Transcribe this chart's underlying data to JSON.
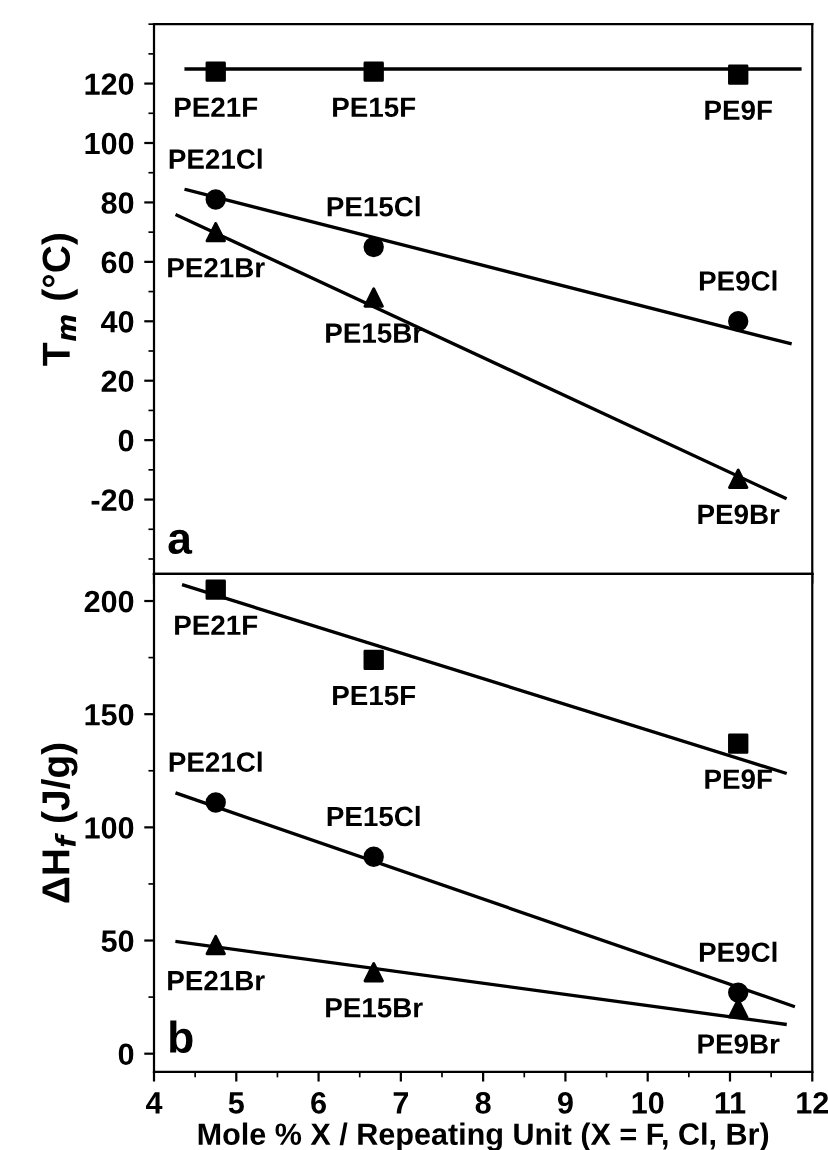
{
  "chart_data": [
    {
      "type": "scatter",
      "ylabel": "T$_{m}$ (°C)",
      "xlim": [
        4,
        12
      ],
      "xticks": [
        4,
        5,
        6,
        7,
        8,
        9,
        10,
        11,
        12
      ],
      "ylim": [
        -45,
        140
      ],
      "yticks": [
        -20,
        0,
        20,
        40,
        60,
        80,
        100,
        120
      ],
      "tick_labels": "y",
      "legend": false,
      "grid": false,
      "series": [
        {
          "color": "#000000",
          "marker": "square",
          "x": [
            4.75,
            6.67,
            11.1
          ],
          "values": [
            124,
            124,
            123
          ]
        },
        {
          "color": "#000000",
          "marker": "circle",
          "x": [
            4.75,
            6.67,
            11.1
          ],
          "values": [
            81,
            65,
            40
          ]
        },
        {
          "color": "#000000",
          "marker": "triangle",
          "x": [
            4.75,
            6.67,
            11.1
          ],
          "values": [
            70,
            48,
            -13
          ]
        },
        {
          "type": "line",
          "color": "#000000",
          "marker": "none",
          "x": [
            4.39,
            11.85
          ],
          "values": [
            124.9,
            124.9
          ]
        },
        {
          "type": "line",
          "color": "#000000",
          "marker": "none",
          "x": [
            4.39,
            11.73
          ],
          "values": [
            84.3,
            32.5
          ]
        },
        {
          "type": "line",
          "color": "#000000",
          "marker": "none",
          "x": [
            4.28,
            11.67
          ],
          "values": [
            75.7,
            -19.5
          ]
        }
      ],
      "annotations": [
        {
          "text": "PE21F",
          "x": 4.75,
          "y": 124
        },
        {
          "text": "PE15F",
          "x": 6.67,
          "y": 124
        },
        {
          "text": "PE9F",
          "x": 11.1,
          "y": 123
        },
        {
          "text": "PE21Cl",
          "x": 4.75,
          "y": 81
        },
        {
          "text": "PE15Cl",
          "x": 6.67,
          "y": 65
        },
        {
          "text": "PE9Cl",
          "x": 11.1,
          "y": 40
        },
        {
          "text": "PE21Br",
          "x": 4.75,
          "y": 70
        },
        {
          "text": "PE15Br",
          "x": 6.67,
          "y": 48
        },
        {
          "text": "PE9Br",
          "x": 11.1,
          "y": -13
        },
        "a"
      ]
    },
    {
      "type": "scatter",
      "ylabel": "ΔH$_{f}$ (J/g)",
      "xlabel": "Mole % X / Repeating Unit (X = F, Cl, Br)",
      "xlim": [
        4,
        12
      ],
      "xticks": [
        4,
        5,
        6,
        7,
        8,
        9,
        10,
        11,
        12
      ],
      "ylim": [
        -8,
        212
      ],
      "yticks": [
        0,
        50,
        100,
        150,
        200
      ],
      "legend": false,
      "grid": false,
      "series": [
        {
          "color": "#000000",
          "marker": "square",
          "x": [
            4.75,
            6.67,
            11.1
          ],
          "values": [
            205,
            174,
            137
          ]
        },
        {
          "color": "#000000",
          "marker": "circle",
          "x": [
            4.75,
            6.67,
            11.1
          ],
          "values": [
            111,
            87,
            27
          ]
        },
        {
          "color": "#000000",
          "marker": "triangle",
          "x": [
            4.75,
            6.67,
            11.1
          ],
          "values": [
            48,
            36,
            20
          ]
        },
        {
          "type": "line",
          "color": "#000000",
          "marker": "none",
          "x": [
            4.36,
            11.67
          ],
          "values": [
            207,
            124
          ]
        },
        {
          "type": "line",
          "color": "#000000",
          "marker": "none",
          "x": [
            4.28,
            11.77
          ],
          "values": [
            115,
            21
          ]
        },
        {
          "type": "line",
          "color": "#000000",
          "marker": "none",
          "x": [
            4.28,
            11.67
          ],
          "values": [
            49.5,
            13
          ]
        }
      ],
      "annotations": [
        {
          "text": "PE21F",
          "x": 4.75,
          "y": 205
        },
        {
          "text": "PE15F",
          "x": 6.67,
          "y": 174
        },
        {
          "text": "PE9F",
          "x": 11.1,
          "y": 137
        },
        {
          "text": "PE21Cl",
          "x": 4.75,
          "y": 111
        },
        {
          "text": "PE15Cl",
          "x": 6.67,
          "y": 87
        },
        {
          "text": "PE9Cl",
          "x": 11.1,
          "y": 27
        },
        {
          "text": "PE21Br",
          "x": 4.75,
          "y": 48
        },
        {
          "text": "PE15Br",
          "x": 6.67,
          "y": 36
        },
        {
          "text": "PE9Br",
          "x": 11.1,
          "y": 20
        },
        "b"
      ]
    }
  ]
}
